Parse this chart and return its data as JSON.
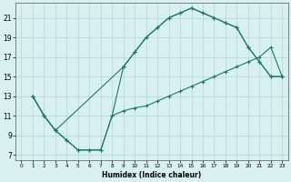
{
  "line1_x": [
    1,
    2,
    3,
    4,
    5,
    6,
    7,
    8,
    9,
    10,
    11,
    12,
    13,
    14,
    15,
    16,
    17,
    18,
    19,
    20,
    21,
    22,
    23
  ],
  "line1_y": [
    13,
    11,
    9.5,
    8.5,
    7.5,
    7.5,
    7.5,
    11,
    16,
    17.5,
    19,
    20,
    21,
    21.5,
    22,
    21.5,
    21,
    20.5,
    20,
    18,
    16.5,
    15,
    15
  ],
  "line2_x": [
    1,
    2,
    3,
    4,
    5,
    6,
    7,
    8,
    9,
    10,
    11,
    12,
    13,
    14,
    15,
    16,
    17,
    18,
    19,
    20,
    21,
    22,
    23
  ],
  "line2_y": [
    13,
    11,
    9.5,
    8.5,
    7.5,
    7.5,
    7.5,
    11,
    11.5,
    11.8,
    12,
    12.5,
    13,
    13.5,
    14,
    14.5,
    15,
    15.5,
    16,
    16.5,
    17,
    18,
    15
  ],
  "line3_x": [
    1,
    2,
    3,
    9,
    10,
    11,
    12,
    13,
    14,
    15,
    16,
    17,
    18,
    19,
    20,
    21,
    22,
    23
  ],
  "line3_y": [
    13,
    11,
    9.5,
    16,
    17.5,
    19,
    20,
    21,
    21.5,
    22,
    21.5,
    21,
    20.5,
    20,
    18,
    16.5,
    15,
    15
  ],
  "color": "#1a7a6a",
  "bg_color": "#d8f0f0",
  "grid_color": "#afd8d8",
  "xlabel": "Humidex (Indice chaleur)",
  "xlim": [
    -0.5,
    23.5
  ],
  "ylim": [
    6.5,
    22.5
  ],
  "xticks": [
    0,
    1,
    2,
    3,
    4,
    5,
    6,
    7,
    8,
    9,
    10,
    11,
    12,
    13,
    14,
    15,
    16,
    17,
    18,
    19,
    20,
    21,
    22,
    23
  ],
  "yticks": [
    7,
    9,
    11,
    13,
    15,
    17,
    19,
    21
  ]
}
